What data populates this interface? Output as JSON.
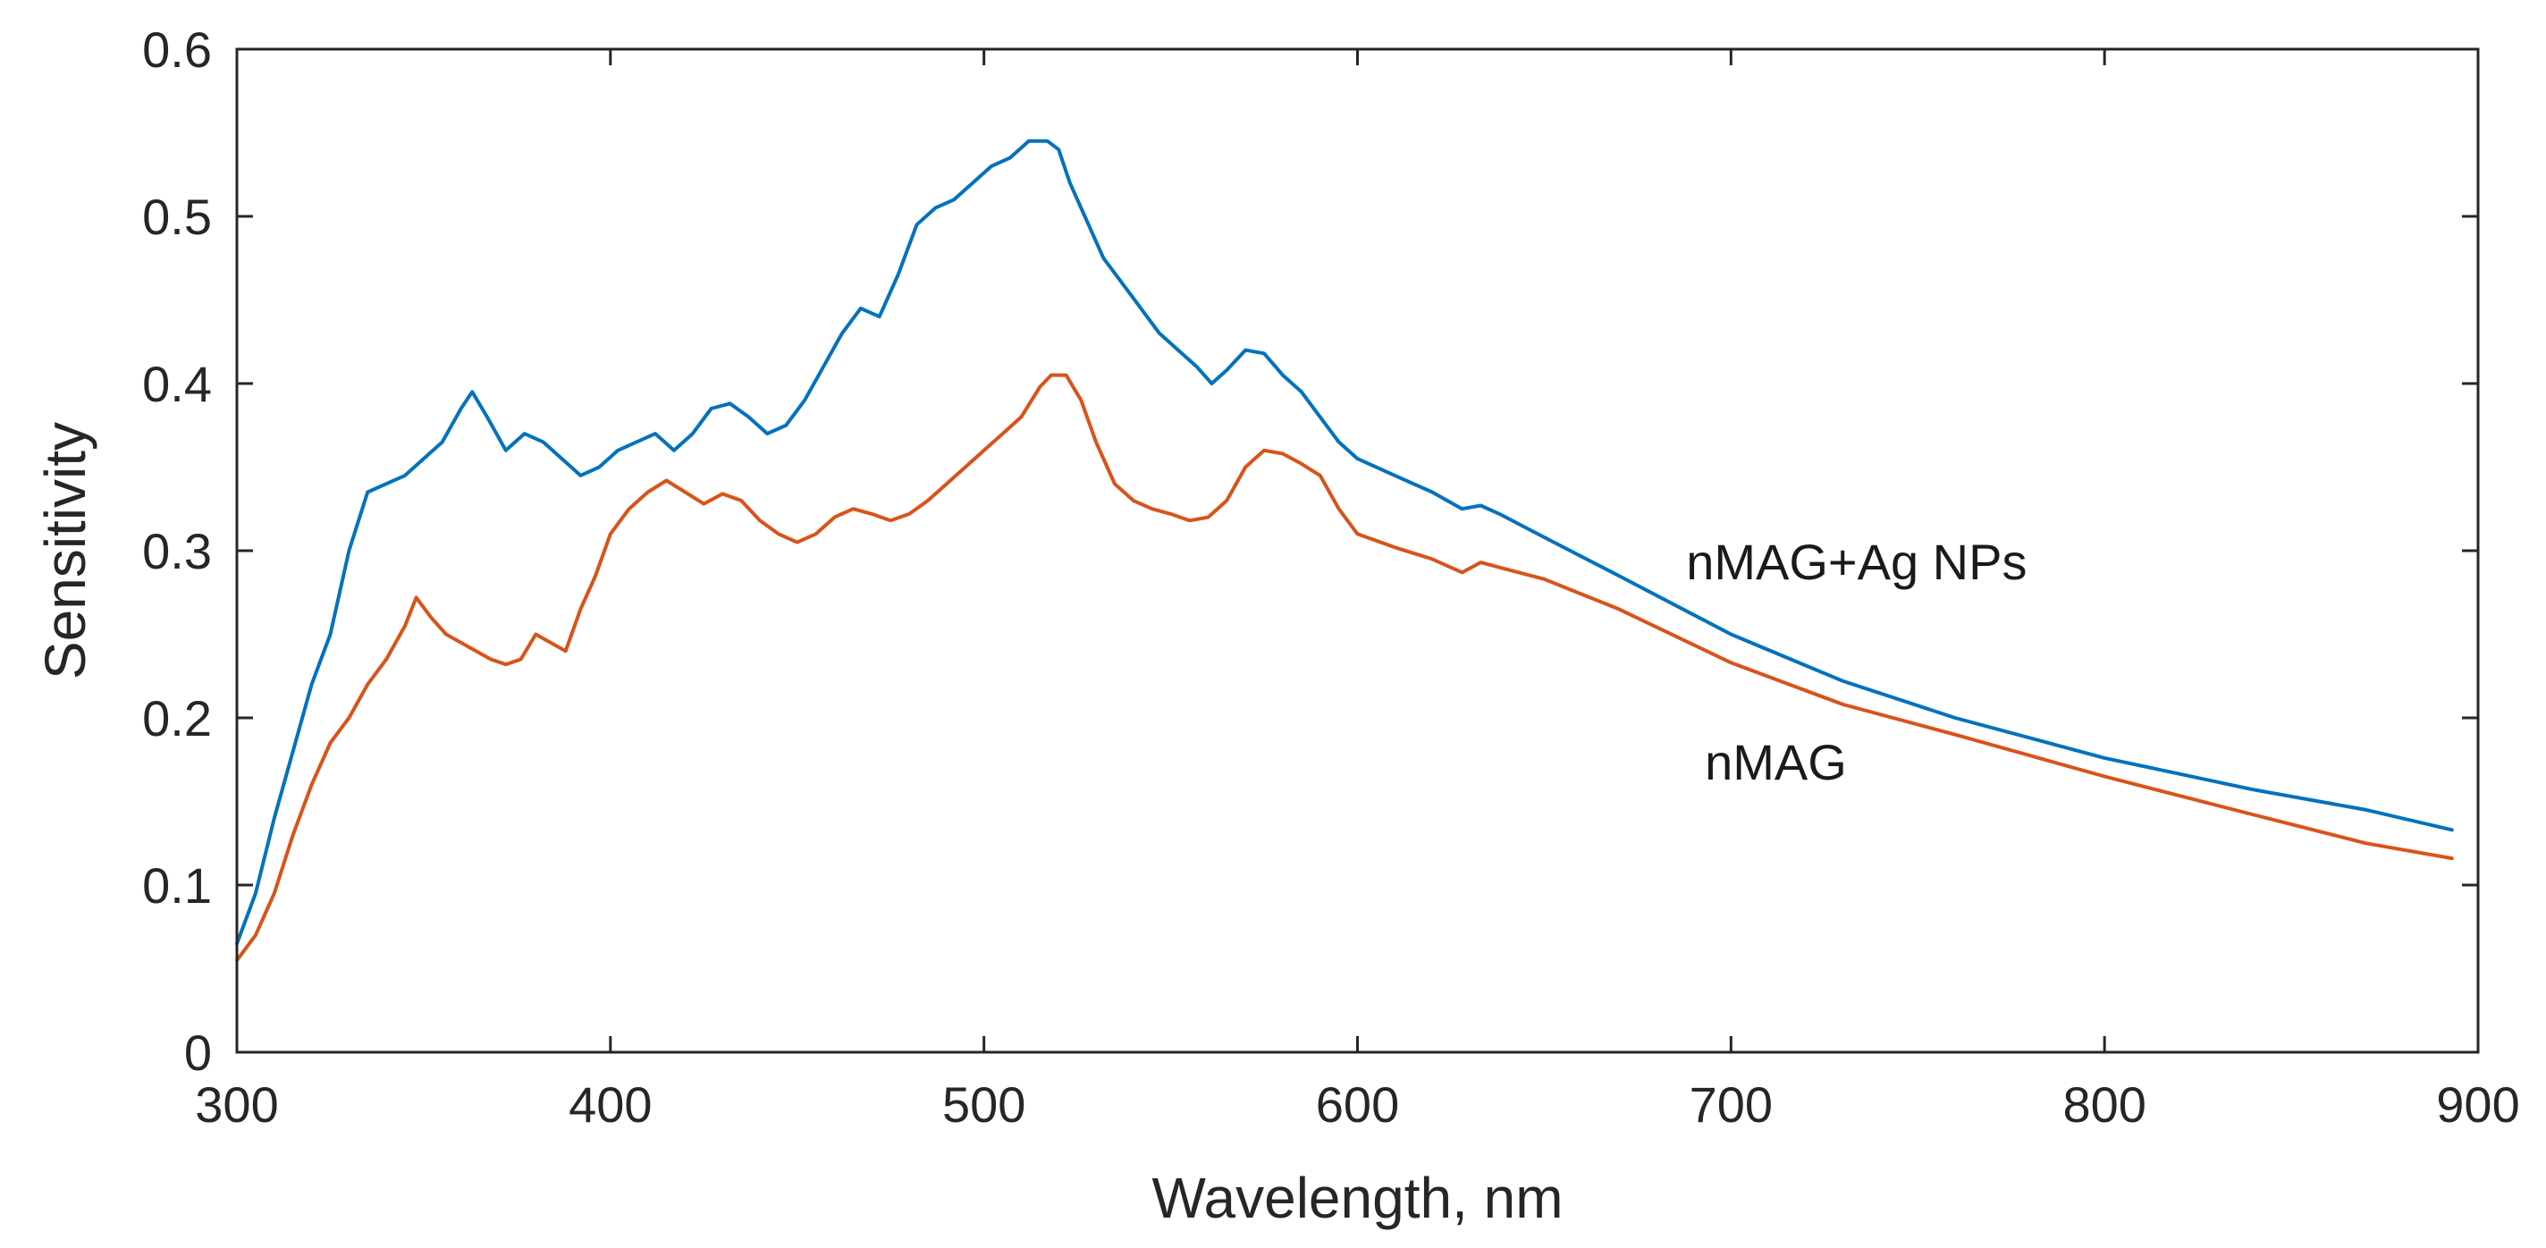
{
  "chart_data": {
    "type": "line",
    "title": "",
    "xlabel": "Wavelength, nm",
    "ylabel": "Sensitivity",
    "xlim": [
      300,
      900
    ],
    "ylim": [
      0,
      0.6
    ],
    "xticks": [
      300,
      400,
      500,
      600,
      700,
      800,
      900
    ],
    "yticks": [
      0,
      0.1,
      0.2,
      0.3,
      0.4,
      0.5,
      0.6
    ],
    "xtick_labels": [
      "300",
      "400",
      "500",
      "600",
      "700",
      "800",
      "900"
    ],
    "ytick_labels": [
      "0",
      "0.1",
      "0.2",
      "0.3",
      "0.4",
      "0.5",
      "0.6"
    ],
    "grid": false,
    "series": [
      {
        "name": "nMAG+Ag NPs",
        "color": "#0072BD",
        "x": [
          300,
          305,
          310,
          315,
          320,
          325,
          330,
          335,
          340,
          345,
          350,
          355,
          360,
          363,
          367,
          372,
          377,
          382,
          387,
          392,
          397,
          402,
          407,
          412,
          417,
          422,
          427,
          432,
          437,
          442,
          447,
          452,
          457,
          462,
          467,
          472,
          477,
          482,
          487,
          492,
          497,
          502,
          507,
          512,
          517,
          520,
          523,
          527,
          532,
          537,
          542,
          547,
          552,
          557,
          561,
          565,
          570,
          575,
          580,
          585,
          590,
          595,
          600,
          610,
          620,
          628,
          633,
          638,
          650,
          670,
          700,
          730,
          760,
          800,
          840,
          870,
          893
        ],
        "y": [
          0.065,
          0.095,
          0.14,
          0.18,
          0.22,
          0.25,
          0.3,
          0.335,
          0.34,
          0.345,
          0.355,
          0.365,
          0.385,
          0.395,
          0.38,
          0.36,
          0.37,
          0.365,
          0.355,
          0.345,
          0.35,
          0.36,
          0.365,
          0.37,
          0.36,
          0.37,
          0.385,
          0.388,
          0.38,
          0.37,
          0.375,
          0.39,
          0.41,
          0.43,
          0.445,
          0.44,
          0.465,
          0.495,
          0.505,
          0.51,
          0.52,
          0.53,
          0.535,
          0.545,
          0.545,
          0.54,
          0.52,
          0.5,
          0.475,
          0.46,
          0.445,
          0.43,
          0.42,
          0.41,
          0.4,
          0.408,
          0.42,
          0.418,
          0.405,
          0.395,
          0.38,
          0.365,
          0.355,
          0.345,
          0.335,
          0.325,
          0.327,
          0.322,
          0.308,
          0.285,
          0.25,
          0.222,
          0.2,
          0.176,
          0.157,
          0.145,
          0.133
        ]
      },
      {
        "name": "nMAG",
        "color": "#D95319",
        "x": [
          300,
          305,
          310,
          315,
          320,
          325,
          330,
          335,
          340,
          345,
          348,
          352,
          356,
          360,
          364,
          368,
          372,
          376,
          380,
          384,
          388,
          392,
          396,
          400,
          405,
          410,
          415,
          420,
          425,
          430,
          435,
          440,
          445,
          450,
          455,
          460,
          465,
          470,
          475,
          480,
          485,
          490,
          495,
          500,
          505,
          510,
          515,
          518,
          522,
          526,
          530,
          535,
          540,
          545,
          550,
          555,
          560,
          565,
          570,
          575,
          580,
          585,
          590,
          595,
          600,
          610,
          620,
          628,
          633,
          638,
          650,
          670,
          700,
          730,
          760,
          800,
          840,
          870,
          893
        ],
        "y": [
          0.055,
          0.07,
          0.095,
          0.13,
          0.16,
          0.185,
          0.2,
          0.22,
          0.235,
          0.255,
          0.272,
          0.26,
          0.25,
          0.245,
          0.24,
          0.235,
          0.232,
          0.235,
          0.25,
          0.245,
          0.24,
          0.265,
          0.285,
          0.31,
          0.325,
          0.335,
          0.342,
          0.335,
          0.328,
          0.334,
          0.33,
          0.318,
          0.31,
          0.305,
          0.31,
          0.32,
          0.325,
          0.322,
          0.318,
          0.322,
          0.33,
          0.34,
          0.35,
          0.36,
          0.37,
          0.38,
          0.398,
          0.405,
          0.405,
          0.39,
          0.365,
          0.34,
          0.33,
          0.325,
          0.322,
          0.318,
          0.32,
          0.33,
          0.35,
          0.36,
          0.358,
          0.352,
          0.345,
          0.325,
          0.31,
          0.302,
          0.295,
          0.287,
          0.293,
          0.29,
          0.283,
          0.265,
          0.233,
          0.208,
          0.19,
          0.165,
          0.142,
          0.125,
          0.116
        ]
      }
    ],
    "annotations": [
      {
        "text": "nMAG+Ag NPs",
        "x": 688,
        "y": 0.283
      },
      {
        "text": "nMAG",
        "x": 693,
        "y": 0.163
      }
    ]
  }
}
